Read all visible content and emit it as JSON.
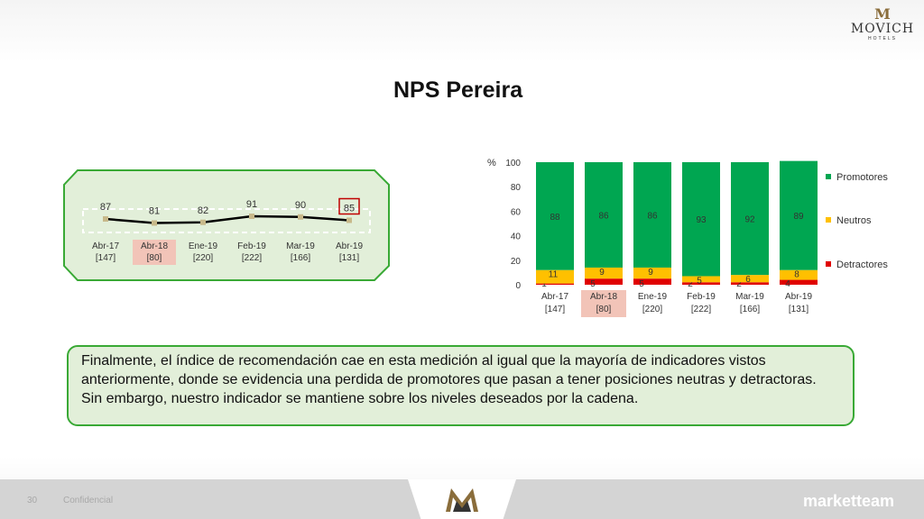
{
  "slide": {
    "title": "NPS Pereira",
    "brand": {
      "logo_name": "MOVICH",
      "logo_sub": "HOTELS"
    },
    "note": "Finalmente, el índice de recomendación cae en esta medición al igual que la mayoría de indicadores vistos anteriormente, donde se evidencia una perdida de promotores que pasan a tener posiciones neutras y detractoras. Sin embargo, nuestro indicador se mantiene sobre los niveles deseados por la cadena.",
    "footer": {
      "page_number": "30",
      "confidential": "Confidencial",
      "agency": "marketteam"
    }
  },
  "colors": {
    "promotores": "#00a651",
    "neutros": "#ffc000",
    "detractores": "#e00000",
    "line": "#000000",
    "marker": "#c8b98a",
    "panel_border": "#39a935",
    "panel_fill": "#e2efd9",
    "highlight": "#f2c4b8",
    "highlight_box": "#c00000"
  },
  "chart_data": [
    {
      "type": "line",
      "title": "",
      "categories": [
        "Abr-17",
        "Abr-18",
        "Ene-19",
        "Feb-19",
        "Mar-19",
        "Abr-19"
      ],
      "bases": [
        "[147]",
        "[80]",
        "[220]",
        "[222]",
        "[166]",
        "[131]"
      ],
      "series": [
        {
          "name": "",
          "values": [
            87,
            81,
            82,
            91,
            90,
            85
          ]
        }
      ],
      "highlight_category": "Abr-18",
      "highlight_value_index": 5
    },
    {
      "type": "bar",
      "stacked": true,
      "ylabel": "%",
      "ylim": [
        0,
        100
      ],
      "yticks": [
        0,
        20,
        40,
        60,
        80,
        100
      ],
      "categories": [
        "Abr-17",
        "Abr-18",
        "Ene-19",
        "Feb-19",
        "Mar-19",
        "Abr-19"
      ],
      "bases": [
        "[147]",
        "[80]",
        "[220]",
        "[222]",
        "[166]",
        "[131]"
      ],
      "highlight_category": "Abr-18",
      "legend_position": "right",
      "series": [
        {
          "name": "Detractores",
          "values": [
            1,
            5,
            5,
            2,
            2,
            4
          ]
        },
        {
          "name": "Neutros",
          "values": [
            11,
            9,
            9,
            5,
            6,
            8
          ]
        },
        {
          "name": "Promotores",
          "values": [
            88,
            86,
            86,
            93,
            92,
            89
          ]
        }
      ],
      "legend": [
        "Promotores",
        "Neutros",
        "Detractores"
      ]
    }
  ]
}
